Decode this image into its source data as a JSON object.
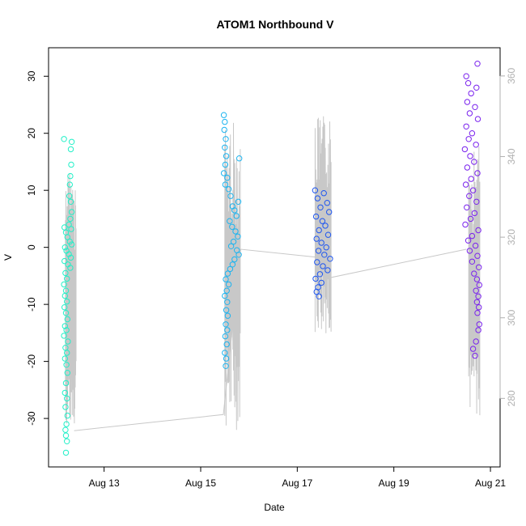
{
  "chart_data": {
    "type": "scatter",
    "title": "ATOM1 Northbound V",
    "xlabel": "Date",
    "ylabel": "V",
    "x_ticks": [
      "Aug 13",
      "Aug 15",
      "Aug 17",
      "Aug 19",
      "Aug 21"
    ],
    "x_tick_values": [
      13.0,
      15.0,
      17.0,
      19.0,
      21.0
    ],
    "xlim": [
      11.85,
      21.2
    ],
    "ylim": [
      -38.5,
      35.0
    ],
    "y_ticks": [
      -30,
      -20,
      -10,
      0,
      10,
      20,
      30
    ],
    "y2lim": [
      263.0,
      367.0
    ],
    "y2_ticks": [
      280,
      300,
      320,
      340,
      360
    ],
    "grid": false,
    "series": [
      {
        "color": "#22F0C8",
        "x_range": [
          12.15,
          12.35
        ],
        "points": [
          [
            12.17,
            19.0
          ],
          [
            12.33,
            18.5
          ],
          [
            12.31,
            17.2
          ],
          [
            12.32,
            14.5
          ],
          [
            12.3,
            12.5
          ],
          [
            12.29,
            11.0
          ],
          [
            12.28,
            9.0
          ],
          [
            12.31,
            8.0
          ],
          [
            12.33,
            6.2
          ],
          [
            12.3,
            5.0
          ],
          [
            12.27,
            4.0
          ],
          [
            12.32,
            3.2
          ],
          [
            12.18,
            3.5
          ],
          [
            12.21,
            2.6
          ],
          [
            12.24,
            1.8
          ],
          [
            12.29,
            1.0
          ],
          [
            12.33,
            0.5
          ],
          [
            12.19,
            0.0
          ],
          [
            12.22,
            -0.6
          ],
          [
            12.27,
            -1.2
          ],
          [
            12.31,
            -1.8
          ],
          [
            12.18,
            -2.4
          ],
          [
            12.25,
            -3.0
          ],
          [
            12.3,
            -3.6
          ],
          [
            12.2,
            -4.5
          ],
          [
            12.23,
            -5.5
          ],
          [
            12.17,
            -6.5
          ],
          [
            12.21,
            -7.6
          ],
          [
            12.19,
            -8.5
          ],
          [
            12.23,
            -9.5
          ],
          [
            12.18,
            -10.5
          ],
          [
            12.21,
            -11.5
          ],
          [
            12.24,
            -12.6
          ],
          [
            12.19,
            -13.8
          ],
          [
            12.22,
            -14.5
          ],
          [
            12.17,
            -15.5
          ],
          [
            12.25,
            -16.5
          ],
          [
            12.2,
            -17.6
          ],
          [
            12.23,
            -18.5
          ],
          [
            12.19,
            -19.5
          ],
          [
            12.22,
            -20.6
          ],
          [
            12.24,
            -22.0
          ],
          [
            12.21,
            -23.8
          ],
          [
            12.19,
            -25.5
          ],
          [
            12.23,
            -26.5
          ],
          [
            12.2,
            -28.0
          ],
          [
            12.24,
            -29.5
          ],
          [
            12.22,
            -31.0
          ],
          [
            12.2,
            -32.0
          ],
          [
            12.21,
            -33.0
          ],
          [
            12.23,
            -34.0
          ],
          [
            12.21,
            -36.0
          ]
        ]
      },
      {
        "color": "#1CB4F0",
        "x_range": [
          15.45,
          15.85
        ],
        "points": [
          [
            15.48,
            23.2
          ],
          [
            15.5,
            22.0
          ],
          [
            15.49,
            20.6
          ],
          [
            15.52,
            19.0
          ],
          [
            15.5,
            17.5
          ],
          [
            15.53,
            16.0
          ],
          [
            15.8,
            15.6
          ],
          [
            15.51,
            14.5
          ],
          [
            15.48,
            13.0
          ],
          [
            15.55,
            12.2
          ],
          [
            15.51,
            11.0
          ],
          [
            15.58,
            10.2
          ],
          [
            15.62,
            9.0
          ],
          [
            15.78,
            8.0
          ],
          [
            15.66,
            7.2
          ],
          [
            15.7,
            6.5
          ],
          [
            15.74,
            5.5
          ],
          [
            15.6,
            4.6
          ],
          [
            15.65,
            3.6
          ],
          [
            15.72,
            2.8
          ],
          [
            15.77,
            1.9
          ],
          [
            15.68,
            1.0
          ],
          [
            15.63,
            0.2
          ],
          [
            15.75,
            -0.5
          ],
          [
            15.79,
            -1.3
          ],
          [
            15.7,
            -2.1
          ],
          [
            15.66,
            -3.0
          ],
          [
            15.61,
            -3.8
          ],
          [
            15.56,
            -4.6
          ],
          [
            15.52,
            -5.6
          ],
          [
            15.58,
            -6.5
          ],
          [
            15.54,
            -7.6
          ],
          [
            15.5,
            -8.5
          ],
          [
            15.55,
            -9.6
          ],
          [
            15.53,
            -11.0
          ],
          [
            15.56,
            -12.0
          ],
          [
            15.52,
            -13.5
          ],
          [
            15.55,
            -14.5
          ],
          [
            15.51,
            -15.6
          ],
          [
            15.54,
            -17.0
          ],
          [
            15.5,
            -18.5
          ],
          [
            15.53,
            -19.5
          ],
          [
            15.52,
            -20.8
          ]
        ]
      },
      {
        "color": "#1E56F0",
        "x_range": [
          17.35,
          17.7
        ],
        "points": [
          [
            17.37,
            10.0
          ],
          [
            17.55,
            9.5
          ],
          [
            17.42,
            8.6
          ],
          [
            17.62,
            7.8
          ],
          [
            17.48,
            7.0
          ],
          [
            17.66,
            6.2
          ],
          [
            17.39,
            5.4
          ],
          [
            17.52,
            4.6
          ],
          [
            17.58,
            3.8
          ],
          [
            17.45,
            3.0
          ],
          [
            17.64,
            2.2
          ],
          [
            17.4,
            1.5
          ],
          [
            17.5,
            0.8
          ],
          [
            17.6,
            0.0
          ],
          [
            17.44,
            -0.6
          ],
          [
            17.56,
            -1.3
          ],
          [
            17.68,
            -2.0
          ],
          [
            17.41,
            -2.6
          ],
          [
            17.53,
            -3.3
          ],
          [
            17.63,
            -4.0
          ],
          [
            17.47,
            -4.7
          ],
          [
            17.38,
            -5.5
          ],
          [
            17.5,
            -6.2
          ],
          [
            17.43,
            -7.0
          ],
          [
            17.4,
            -7.8
          ],
          [
            17.45,
            -8.6
          ]
        ]
      },
      {
        "color": "#7A22EE",
        "x_range": [
          20.45,
          20.8
        ],
        "points": [
          [
            20.73,
            32.2
          ],
          [
            20.5,
            30.0
          ],
          [
            20.54,
            28.8
          ],
          [
            20.71,
            28.0
          ],
          [
            20.6,
            27.0
          ],
          [
            20.52,
            25.5
          ],
          [
            20.68,
            24.6
          ],
          [
            20.57,
            23.5
          ],
          [
            20.74,
            22.5
          ],
          [
            20.5,
            21.2
          ],
          [
            20.62,
            20.0
          ],
          [
            20.55,
            19.0
          ],
          [
            20.7,
            18.0
          ],
          [
            20.47,
            17.2
          ],
          [
            20.58,
            16.0
          ],
          [
            20.66,
            15.0
          ],
          [
            20.52,
            14.0
          ],
          [
            20.73,
            13.0
          ],
          [
            20.6,
            12.0
          ],
          [
            20.49,
            11.0
          ],
          [
            20.64,
            10.0
          ],
          [
            20.56,
            9.0
          ],
          [
            20.71,
            8.0
          ],
          [
            20.51,
            7.0
          ],
          [
            20.67,
            6.0
          ],
          [
            20.59,
            5.0
          ],
          [
            20.48,
            4.0
          ],
          [
            20.75,
            3.0
          ],
          [
            20.62,
            2.0
          ],
          [
            20.54,
            1.2
          ],
          [
            20.69,
            0.3
          ],
          [
            20.57,
            -0.6
          ],
          [
            20.73,
            -1.5
          ],
          [
            20.62,
            -2.5
          ],
          [
            20.76,
            -3.5
          ],
          [
            20.66,
            -4.6
          ],
          [
            20.72,
            -5.6
          ],
          [
            20.77,
            -6.6
          ],
          [
            20.7,
            -7.6
          ],
          [
            20.75,
            -8.6
          ],
          [
            20.72,
            -9.6
          ],
          [
            20.76,
            -10.5
          ],
          [
            20.73,
            -11.5
          ],
          [
            20.77,
            -13.5
          ],
          [
            20.75,
            -14.5
          ],
          [
            20.7,
            -16.5
          ],
          [
            20.64,
            -17.8
          ],
          [
            20.68,
            -19.0
          ]
        ]
      }
    ],
    "overlay_series": {
      "axis": "right",
      "color": "#c8c8c8",
      "bursts": [
        {
          "x_range": [
            12.2,
            12.42
          ],
          "y2_range": [
            272.0,
            337.0
          ]
        },
        {
          "x_range": [
            15.5,
            15.82
          ],
          "y2_range": [
            272.0,
            349.0
          ]
        },
        {
          "x_range": [
            17.37,
            17.7
          ],
          "y2_range": [
            296.0,
            350.0
          ]
        },
        {
          "x_range": [
            20.55,
            20.78
          ],
          "y2_range": [
            275.0,
            343.0
          ]
        }
      ],
      "path": [
        [
          12.38,
          272.0
        ],
        [
          15.47,
          276.0
        ],
        [
          15.83,
          317.0
        ],
        [
          17.42,
          315.0
        ],
        [
          17.7,
          310.0
        ],
        [
          20.5,
          317.0
        ]
      ]
    }
  }
}
